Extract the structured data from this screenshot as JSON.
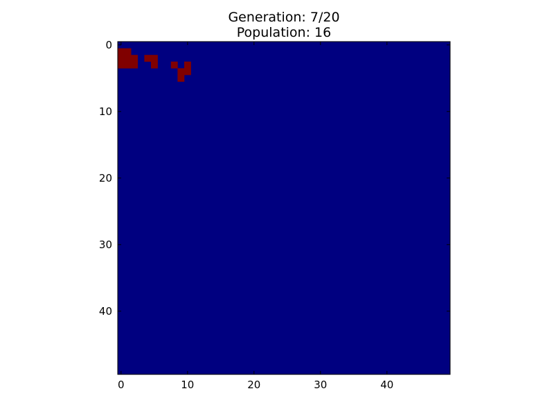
{
  "chart_data": {
    "type": "heatmap",
    "title_line1": "Generation: 7/20",
    "title_line2": "Population: 16",
    "grid_size": [
      50,
      50
    ],
    "colors": {
      "dead": "#000080",
      "alive": "#800000"
    },
    "x_ticks": [
      0,
      10,
      20,
      30,
      40
    ],
    "y_ticks": [
      0,
      10,
      20,
      30,
      40
    ],
    "x_tick_labels": [
      "0",
      "10",
      "20",
      "30",
      "40"
    ],
    "y_tick_labels": [
      "0",
      "10",
      "20",
      "30",
      "40"
    ],
    "alive_cells": [
      {
        "row": 1,
        "col": 0
      },
      {
        "row": 1,
        "col": 1
      },
      {
        "row": 2,
        "col": 0
      },
      {
        "row": 2,
        "col": 1
      },
      {
        "row": 2,
        "col": 2
      },
      {
        "row": 3,
        "col": 0
      },
      {
        "row": 3,
        "col": 1
      },
      {
        "row": 3,
        "col": 2
      },
      {
        "row": 2,
        "col": 4
      },
      {
        "row": 2,
        "col": 5
      },
      {
        "row": 3,
        "col": 5
      },
      {
        "row": 3,
        "col": 8
      },
      {
        "row": 3,
        "col": 10
      },
      {
        "row": 4,
        "col": 9
      },
      {
        "row": 4,
        "col": 10
      },
      {
        "row": 5,
        "col": 9
      }
    ]
  }
}
